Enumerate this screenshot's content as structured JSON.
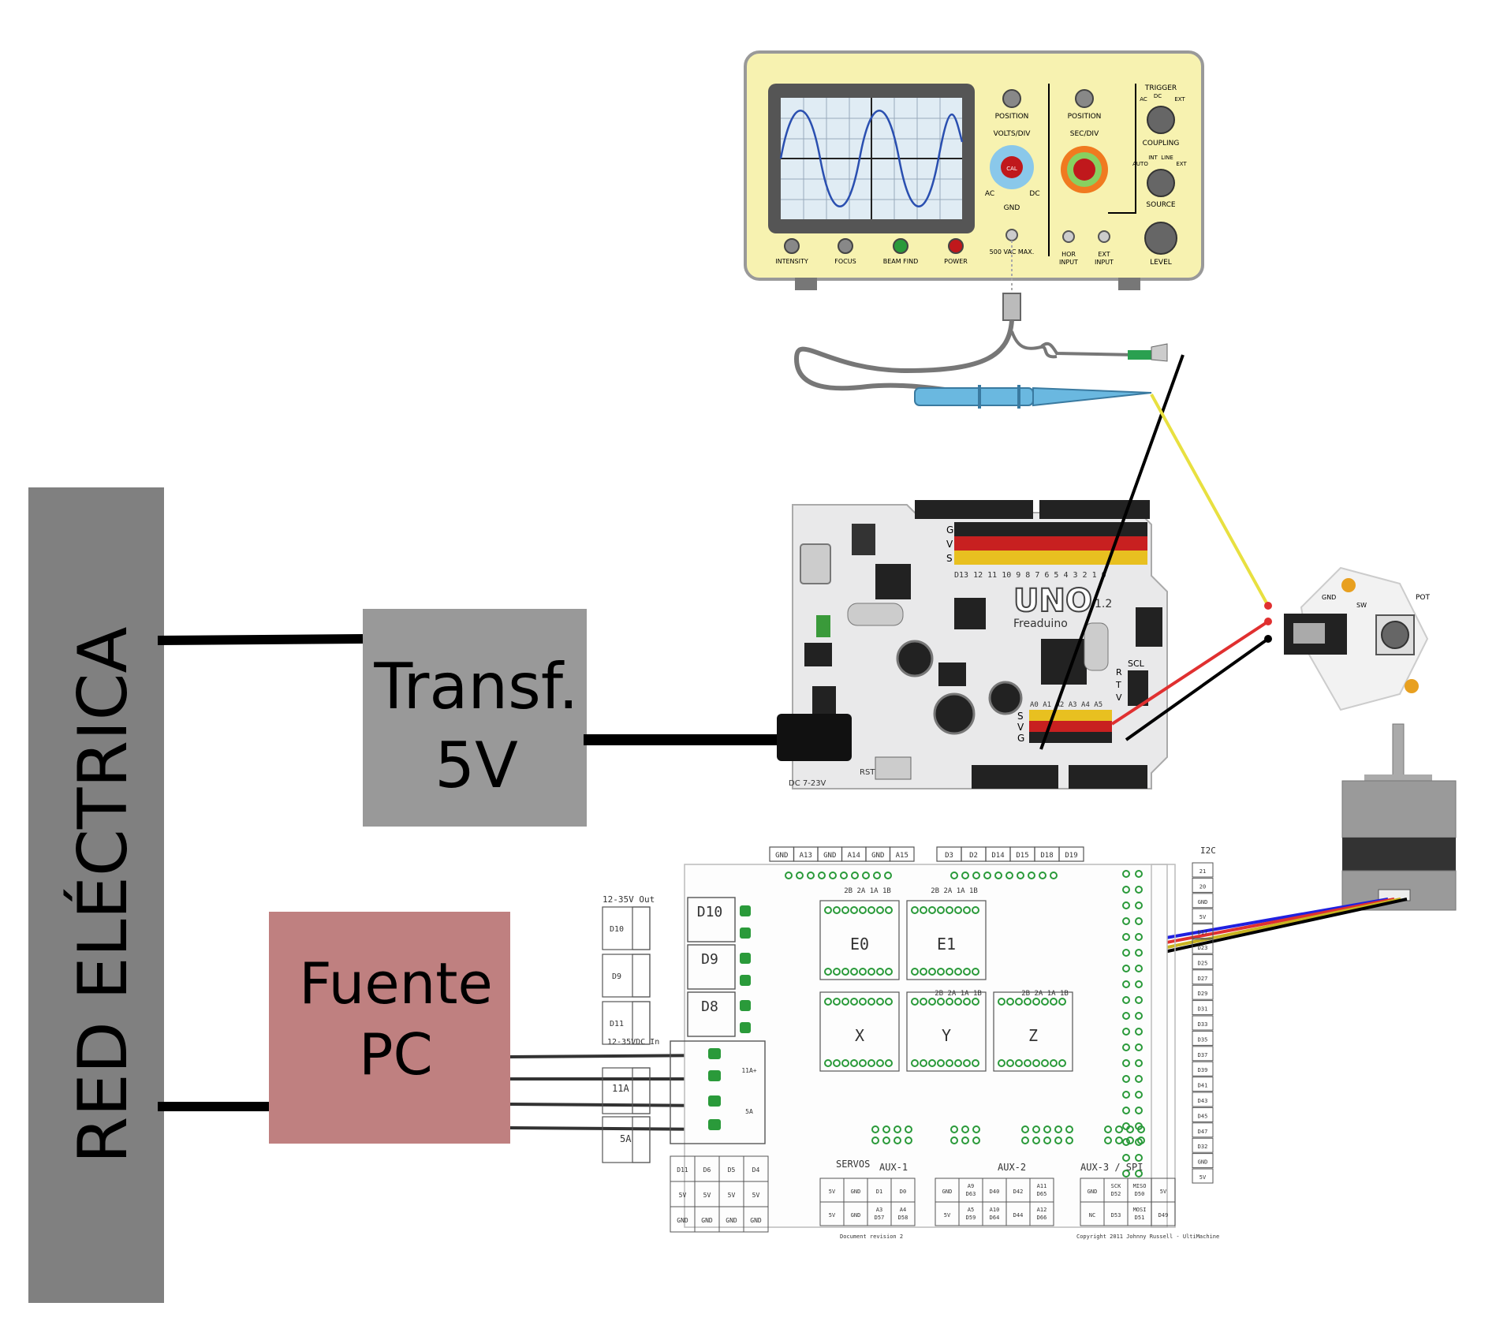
{
  "blocks": {
    "grid": "RED ELÉCTRICA",
    "transformer_line1": "Transf.",
    "transformer_line2": "5V",
    "psu_line1": "Fuente",
    "psu_line2": "PC"
  },
  "oscilloscope": {
    "position_left": "POSITION",
    "volts_div": "VOLTS/DIV",
    "cal": "CAL",
    "ac": "AC",
    "gnd": "GND",
    "dc": "DC",
    "vac_max": "500 VAC MAX.",
    "position_right": "POSITION",
    "sec_div": "SEC/DIV",
    "hor_input1": "HOR",
    "hor_input2": "INPUT",
    "ext_input1": "EXT",
    "ext_input2": "INPUT",
    "trigger": "TRIGGER",
    "coupling_ac": "AC",
    "coupling_dc": "DC",
    "coupling_ext": "EXT",
    "coupling": "COUPLING",
    "src_auto": "AUTO",
    "src_int": "INT",
    "src_line": "LINE",
    "src_ext": "EXT",
    "source": "SOURCE",
    "level": "LEVEL",
    "intensity": "INTENSITY",
    "focus": "FOCUS",
    "beam_find": "BEAM FIND",
    "power": "POWER"
  },
  "arduino": {
    "brand": "UNO",
    "model": "Freaduino",
    "version": "1.2",
    "dc_label": "DC 7-23V",
    "rst": "RST",
    "scl": "SCL",
    "rows": [
      "S",
      "V",
      "G"
    ],
    "rows2": [
      "R",
      "T",
      "V"
    ],
    "digital_pins": "D13 12 11 10  9  8  7  6  5  4  3  2  1  0",
    "analog_pins": "A0 A1 A2 A3 A4 A5",
    "pin_g": "G",
    "pin_v": "V",
    "pin_s": "S"
  },
  "joystick": {
    "label_pot": "POT",
    "label_sw": "SW",
    "label_gnd": "GND"
  },
  "ramps": {
    "top_headers_left": [
      "GND",
      "A13",
      "GND",
      "A14",
      "GND",
      "A15"
    ],
    "top_headers_right": [
      "D3",
      "D2",
      "D14",
      "D15",
      "D18",
      "D19"
    ],
    "i2c": "I2C",
    "out_label": "12-35V Out",
    "outputs": [
      "D10",
      "D9",
      "D8"
    ],
    "left_outputs": [
      "D10",
      "D9",
      "D11"
    ],
    "in_label": "12-35VDC In",
    "in_11a": "11A",
    "in_5a": "5A",
    "drivers": [
      "E0",
      "E1",
      "X",
      "Y",
      "Z"
    ],
    "right_col": [
      "21",
      "20",
      "GND",
      "5V",
      "D17",
      "D23",
      "D25",
      "D27",
      "D29",
      "D31",
      "D33",
      "D35",
      "D37",
      "D39",
      "D41",
      "D43",
      "D45",
      "D47",
      "D32",
      "GND",
      "5V"
    ],
    "servos": "SERVOS",
    "aux1": "AUX-1",
    "aux2": "AUX-2",
    "aux3": "AUX-3 / SPI",
    "servo_cells": [
      "D11",
      "D6",
      "D5",
      "D4",
      "5V",
      "5V",
      "5V",
      "5V",
      "GND",
      "GND",
      "GND",
      "GND"
    ],
    "aux1_cells": [
      "5V",
      "GND",
      "D1",
      "D0",
      "5V",
      "GND",
      "A3\nD57",
      "A4\nD58"
    ],
    "aux2_cells": [
      "GND",
      "A9\nD63",
      "D40",
      "D42",
      "A11\nD65",
      "5V",
      "A5\nD59",
      "A10\nD64",
      "D44",
      "A12\nD66"
    ],
    "aux3_cells": [
      "GND",
      "SCK\nD52",
      "MISO\nD50",
      "5V",
      "NC",
      "D53",
      "MOSI\nD51",
      "D49"
    ],
    "doc_rev": "Document revision 2",
    "copyright": "Copyright 2011 Johnny Russell - UltiMachine",
    "mid_labels": [
      "2B 2A 1A 1B",
      "2B 2A 1A 1B",
      "2B 2A 1A 1B",
      "2B 2A 1A 1B"
    ],
    "small_11a": "11A+",
    "small_5a": "5A"
  },
  "colors": {
    "grid_block": "#808080",
    "transformer_block": "#999999",
    "psu_block": "#bf8080",
    "scope_body": "#f7f2b0",
    "wire_black": "#000000",
    "wire_red": "#e03030",
    "wire_yellow": "#e8e040",
    "wire_blue": "#2020e0",
    "probe_blue": "#6ab8e0"
  }
}
